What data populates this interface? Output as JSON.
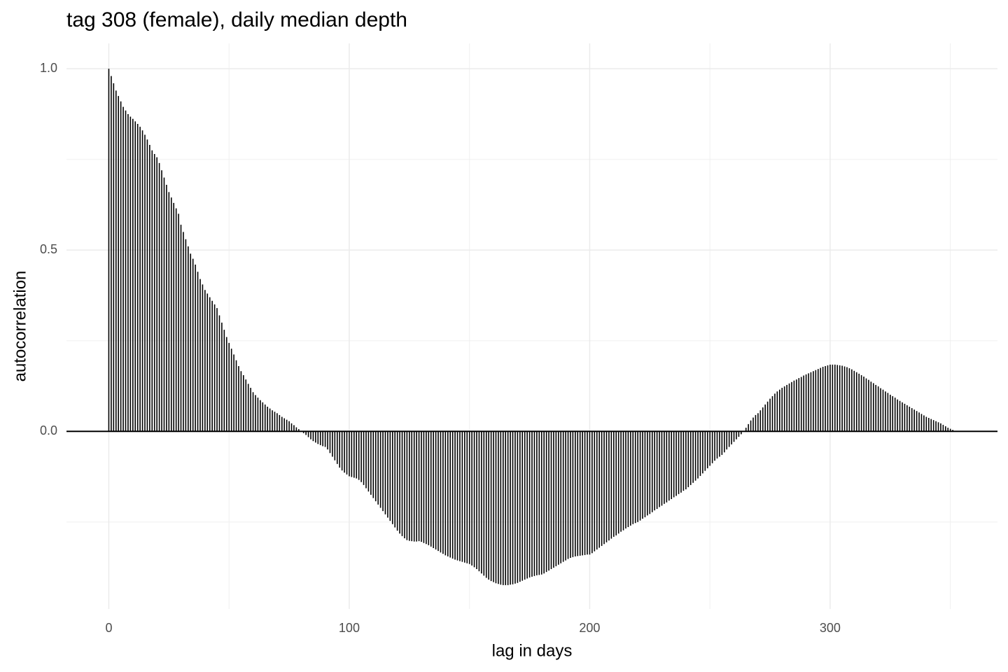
{
  "chart_data": {
    "type": "bar",
    "title": "tag 308 (female), daily median depth",
    "x_label": "lag in days",
    "y_label": "autocorrelation",
    "color": "#000000",
    "grid": true,
    "hline": 0,
    "xlim": [
      -17.6,
      369.6
    ],
    "ylim": [
      -0.49,
      1.07
    ],
    "xticks": [
      0,
      100,
      200,
      300
    ],
    "yticks": [
      {
        "value": 0,
        "label": "0.0"
      },
      0.5,
      {
        "value": 1,
        "label": "1.0"
      }
    ],
    "xminor": [
      50,
      150,
      250,
      350
    ],
    "yminor": [
      -0.25,
      0.25,
      0.75
    ],
    "x": [
      0,
      1,
      2,
      3,
      4,
      5,
      6,
      7,
      8,
      9,
      10,
      11,
      12,
      13,
      14,
      15,
      16,
      17,
      18,
      19,
      20,
      21,
      22,
      23,
      24,
      25,
      26,
      27,
      28,
      29,
      30,
      31,
      32,
      33,
      34,
      35,
      36,
      37,
      38,
      39,
      40,
      41,
      42,
      43,
      44,
      45,
      46,
      47,
      48,
      49,
      50,
      51,
      52,
      53,
      54,
      55,
      56,
      57,
      58,
      59,
      60,
      61,
      62,
      63,
      64,
      65,
      66,
      67,
      68,
      69,
      70,
      71,
      72,
      73,
      74,
      75,
      76,
      77,
      78,
      79,
      80,
      81,
      82,
      83,
      84,
      85,
      86,
      87,
      88,
      89,
      90,
      91,
      92,
      93,
      94,
      95,
      96,
      97,
      98,
      99,
      100,
      101,
      102,
      103,
      104,
      105,
      106,
      107,
      108,
      109,
      110,
      111,
      112,
      113,
      114,
      115,
      116,
      117,
      118,
      119,
      120,
      121,
      122,
      123,
      124,
      125,
      126,
      127,
      128,
      129,
      130,
      131,
      132,
      133,
      134,
      135,
      136,
      137,
      138,
      139,
      140,
      141,
      142,
      143,
      144,
      145,
      146,
      147,
      148,
      149,
      150,
      151,
      152,
      153,
      154,
      155,
      156,
      157,
      158,
      159,
      160,
      161,
      162,
      163,
      164,
      165,
      166,
      167,
      168,
      169,
      170,
      171,
      172,
      173,
      174,
      175,
      176,
      177,
      178,
      179,
      180,
      181,
      182,
      183,
      184,
      185,
      186,
      187,
      188,
      189,
      190,
      191,
      192,
      193,
      194,
      195,
      196,
      197,
      198,
      199,
      200,
      201,
      202,
      203,
      204,
      205,
      206,
      207,
      208,
      209,
      210,
      211,
      212,
      213,
      214,
      215,
      216,
      217,
      218,
      219,
      220,
      221,
      222,
      223,
      224,
      225,
      226,
      227,
      228,
      229,
      230,
      231,
      232,
      233,
      234,
      235,
      236,
      237,
      238,
      239,
      240,
      241,
      242,
      243,
      244,
      245,
      246,
      247,
      248,
      249,
      250,
      251,
      252,
      253,
      254,
      255,
      256,
      257,
      258,
      259,
      260,
      261,
      262,
      263,
      264,
      265,
      266,
      267,
      268,
      269,
      270,
      271,
      272,
      273,
      274,
      275,
      276,
      277,
      278,
      279,
      280,
      281,
      282,
      283,
      284,
      285,
      286,
      287,
      288,
      289,
      290,
      291,
      292,
      293,
      294,
      295,
      296,
      297,
      298,
      299,
      300,
      301,
      302,
      303,
      304,
      305,
      306,
      307,
      308,
      309,
      310,
      311,
      312,
      313,
      314,
      315,
      316,
      317,
      318,
      319,
      320,
      321,
      322,
      323,
      324,
      325,
      326,
      327,
      328,
      329,
      330,
      331,
      332,
      333,
      334,
      335,
      336,
      337,
      338,
      339,
      340,
      341,
      342,
      343,
      344,
      345,
      346,
      347,
      348,
      349,
      350,
      351,
      352
    ],
    "values": [
      1.0,
      0.98,
      0.96,
      0.94,
      0.925,
      0.91,
      0.895,
      0.885,
      0.875,
      0.868,
      0.862,
      0.855,
      0.848,
      0.84,
      0.83,
      0.818,
      0.805,
      0.79,
      0.775,
      0.765,
      0.756,
      0.74,
      0.72,
      0.7,
      0.68,
      0.66,
      0.645,
      0.63,
      0.615,
      0.6,
      0.57,
      0.55,
      0.53,
      0.51,
      0.49,
      0.476,
      0.46,
      0.44,
      0.42,
      0.405,
      0.39,
      0.38,
      0.37,
      0.36,
      0.35,
      0.34,
      0.32,
      0.3,
      0.28,
      0.26,
      0.244,
      0.228,
      0.212,
      0.196,
      0.18,
      0.166,
      0.155,
      0.143,
      0.131,
      0.12,
      0.108,
      0.1,
      0.093,
      0.086,
      0.08,
      0.074,
      0.068,
      0.063,
      0.058,
      0.054,
      0.05,
      0.045,
      0.04,
      0.036,
      0.032,
      0.028,
      0.022,
      0.017,
      0.011,
      0.006,
      0.001,
      -0.005,
      -0.01,
      -0.016,
      -0.022,
      -0.027,
      -0.031,
      -0.035,
      -0.038,
      -0.041,
      -0.043,
      -0.05,
      -0.06,
      -0.07,
      -0.08,
      -0.09,
      -0.1,
      -0.108,
      -0.114,
      -0.119,
      -0.124,
      -0.126,
      -0.128,
      -0.13,
      -0.134,
      -0.14,
      -0.148,
      -0.157,
      -0.166,
      -0.175,
      -0.184,
      -0.193,
      -0.202,
      -0.211,
      -0.22,
      -0.229,
      -0.238,
      -0.247,
      -0.256,
      -0.265,
      -0.274,
      -0.282,
      -0.289,
      -0.295,
      -0.3,
      -0.302,
      -0.303,
      -0.304,
      -0.304,
      -0.303,
      -0.305,
      -0.308,
      -0.311,
      -0.314,
      -0.318,
      -0.322,
      -0.326,
      -0.33,
      -0.334,
      -0.338,
      -0.342,
      -0.345,
      -0.348,
      -0.351,
      -0.354,
      -0.356,
      -0.358,
      -0.36,
      -0.362,
      -0.364,
      -0.366,
      -0.37,
      -0.375,
      -0.38,
      -0.386,
      -0.392,
      -0.398,
      -0.404,
      -0.409,
      -0.413,
      -0.416,
      -0.419,
      -0.421,
      -0.423,
      -0.424,
      -0.424,
      -0.424,
      -0.423,
      -0.422,
      -0.42,
      -0.418,
      -0.415,
      -0.412,
      -0.409,
      -0.406,
      -0.403,
      -0.401,
      -0.399,
      -0.397,
      -0.396,
      -0.395,
      -0.392,
      -0.388,
      -0.384,
      -0.38,
      -0.376,
      -0.372,
      -0.368,
      -0.364,
      -0.36,
      -0.356,
      -0.352,
      -0.349,
      -0.347,
      -0.345,
      -0.344,
      -0.343,
      -0.342,
      -0.341,
      -0.34,
      -0.34,
      -0.336,
      -0.331,
      -0.326,
      -0.321,
      -0.316,
      -0.311,
      -0.306,
      -0.301,
      -0.296,
      -0.291,
      -0.287,
      -0.282,
      -0.277,
      -0.273,
      -0.268,
      -0.264,
      -0.26,
      -0.256,
      -0.253,
      -0.25,
      -0.246,
      -0.241,
      -0.237,
      -0.232,
      -0.228,
      -0.223,
      -0.218,
      -0.214,
      -0.209,
      -0.205,
      -0.2,
      -0.196,
      -0.191,
      -0.187,
      -0.182,
      -0.178,
      -0.173,
      -0.169,
      -0.164,
      -0.16,
      -0.154,
      -0.148,
      -0.142,
      -0.136,
      -0.13,
      -0.123,
      -0.116,
      -0.109,
      -0.102,
      -0.095,
      -0.088,
      -0.081,
      -0.075,
      -0.07,
      -0.065,
      -0.058,
      -0.05,
      -0.043,
      -0.036,
      -0.029,
      -0.022,
      -0.015,
      -0.008,
      -0.001,
      0.01,
      0.02,
      0.03,
      0.038,
      0.045,
      0.05,
      0.058,
      0.066,
      0.074,
      0.082,
      0.09,
      0.097,
      0.104,
      0.11,
      0.115,
      0.12,
      0.124,
      0.128,
      0.132,
      0.136,
      0.14,
      0.143,
      0.147,
      0.15,
      0.154,
      0.157,
      0.16,
      0.163,
      0.166,
      0.169,
      0.172,
      0.175,
      0.178,
      0.18,
      0.182,
      0.184,
      0.184,
      0.184,
      0.183,
      0.182,
      0.181,
      0.179,
      0.177,
      0.174,
      0.171,
      0.167,
      0.163,
      0.159,
      0.155,
      0.151,
      0.146,
      0.142,
      0.137,
      0.133,
      0.128,
      0.124,
      0.119,
      0.115,
      0.11,
      0.106,
      0.101,
      0.097,
      0.093,
      0.088,
      0.084,
      0.08,
      0.076,
      0.072,
      0.068,
      0.064,
      0.06,
      0.056,
      0.052,
      0.048,
      0.044,
      0.04,
      0.037,
      0.034,
      0.031,
      0.028,
      0.025,
      0.022,
      0.018,
      0.014,
      0.01,
      0.007,
      0.004,
      0.001
    ]
  }
}
